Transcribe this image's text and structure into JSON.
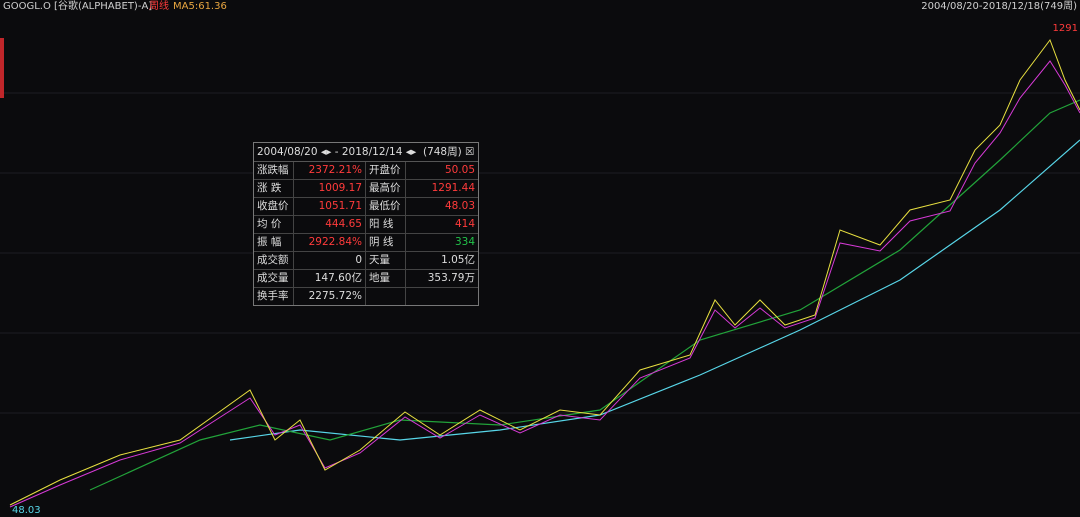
{
  "header": {
    "symbol": "GOOGL.O [谷歌(ALPHABET)-A]",
    "period": "周线",
    "ma": "MA5:61.36",
    "range": "2004/08/20-2018/12/18(749周)"
  },
  "chart": {
    "high_label": "1291",
    "low_label": "48.03"
  },
  "popup": {
    "start": "2004/08/20",
    "end": "2018/12/14",
    "count": "(748周)",
    "rows": [
      [
        "涨跌幅",
        "2372.21%",
        "开盘价",
        "50.05"
      ],
      [
        "涨 跌",
        "1009.17",
        "最高价",
        "1291.44"
      ],
      [
        "收盘价",
        "1051.71",
        "最低价",
        "48.03"
      ],
      [
        "均 价",
        "444.65",
        "阳 线",
        "414"
      ],
      [
        "振 幅",
        "2922.84%",
        "阴 线",
        "334"
      ],
      [
        "成交额",
        "0",
        "天量",
        "1.05亿"
      ],
      [
        "成交量",
        "147.60亿",
        "地量",
        "353.79万"
      ],
      [
        "换手率",
        "2275.72%"
      ]
    ]
  }
}
